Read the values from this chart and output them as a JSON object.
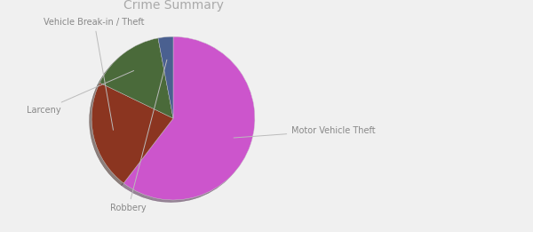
{
  "title": "Crime Summary",
  "title_color": "#aaaaaa",
  "title_fontsize": 10,
  "labels": [
    "Motor Vehicle Theft",
    "Vehicle Break-in / Theft",
    "Larceny",
    "Robbery"
  ],
  "values": [
    61,
    22,
    15,
    3
  ],
  "colors": [
    "#cc55cc",
    "#8b3520",
    "#4a6a3a",
    "#4a6090"
  ],
  "label_color": "#888888",
  "label_fontsize": 7,
  "background_color": "#f0f0f0",
  "startangle": 90
}
